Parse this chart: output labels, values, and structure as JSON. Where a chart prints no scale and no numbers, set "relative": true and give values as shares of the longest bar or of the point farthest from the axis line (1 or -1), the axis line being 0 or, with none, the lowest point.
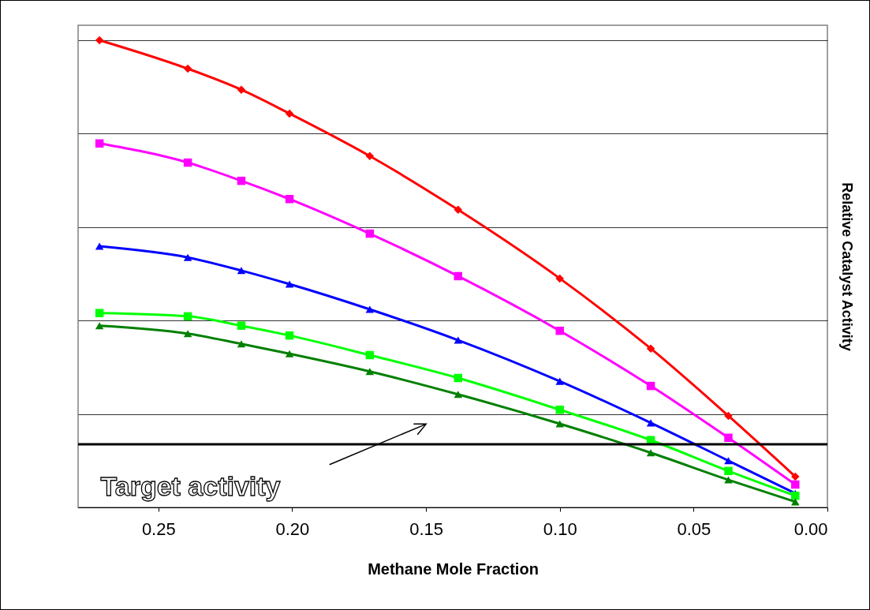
{
  "chart_data": {
    "type": "line",
    "relative": true,
    "xlabel": "Methane Mole Fraction",
    "ylabel": "Relative Catalyst Activity",
    "xlim": [
      0.28,
      0
    ],
    "xticks": [
      {
        "value": 0.25,
        "label": "0.25"
      },
      {
        "value": 0.2,
        "label": "0.20"
      },
      {
        "value": 0.15,
        "label": "0.15"
      },
      {
        "value": 0.1,
        "label": "0.10"
      },
      {
        "value": 0.05,
        "label": "0.05"
      },
      {
        "value": 0,
        "label": "0.00"
      }
    ],
    "x": [
      0.272,
      0.239,
      0.219,
      0.201,
      0.171,
      0.138,
      0.1,
      0.066,
      0.037,
      0.012
    ],
    "series": [
      {
        "color": "#ff0000",
        "marker": "diamond",
        "values": [
          1,
          0.939,
          0.894,
          0.843,
          0.752,
          0.637,
          0.49,
          0.34,
          0.196,
          0.066
        ]
      },
      {
        "color": "#ff00ff",
        "marker": "square",
        "values": [
          0.779,
          0.738,
          0.699,
          0.66,
          0.586,
          0.495,
          0.378,
          0.26,
          0.149,
          0.049
        ]
      },
      {
        "color": "#0000ff",
        "marker": "triangle",
        "values": [
          0.559,
          0.535,
          0.507,
          0.478,
          0.424,
          0.358,
          0.27,
          0.181,
          0.1,
          0.03
        ]
      },
      {
        "color": "#00ff00",
        "marker": "square",
        "values": [
          0.416,
          0.409,
          0.389,
          0.368,
          0.326,
          0.277,
          0.209,
          0.144,
          0.078,
          0.025
        ]
      },
      {
        "color": "#008000",
        "marker": "triangle",
        "values": [
          0.389,
          0.372,
          0.35,
          0.329,
          0.291,
          0.242,
          0.179,
          0.117,
          0.059,
          0.012
        ]
      }
    ],
    "ref_lines": [
      {
        "axis": "y",
        "value": 0.135,
        "label": "Target activity",
        "color": "#000000"
      }
    ],
    "grid": "y"
  }
}
